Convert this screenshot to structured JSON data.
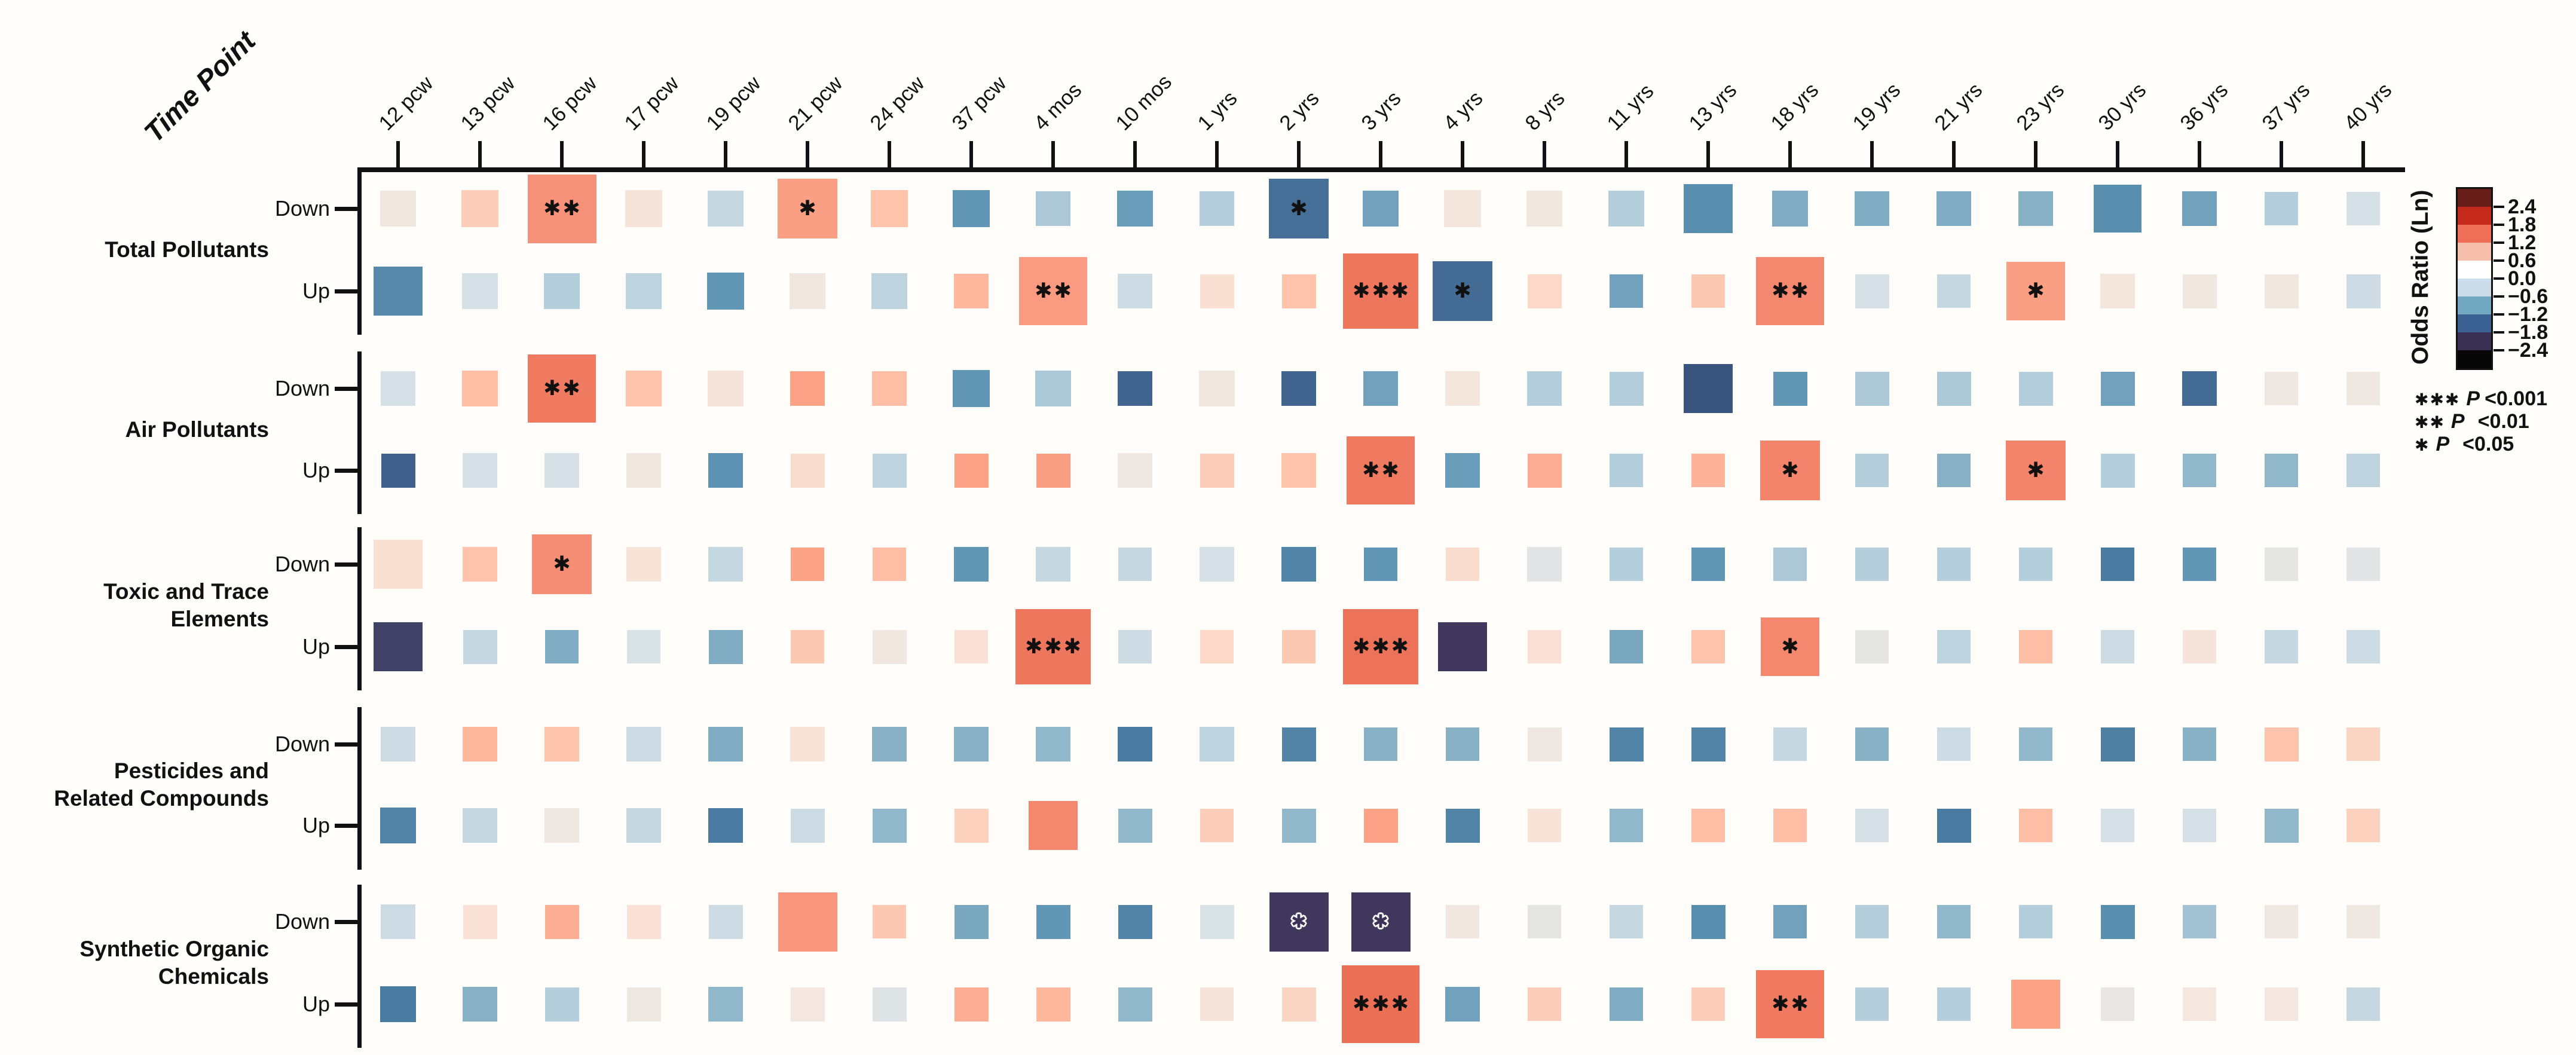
{
  "figure": {
    "background": "#fffdf9",
    "axis_color": "#121111"
  },
  "significance_legend": [
    {
      "stars": "***",
      "p": "P",
      "threshold": "<0.001"
    },
    {
      "stars": "**",
      "p": "P",
      "threshold": "<0.01"
    },
    {
      "stars": "*",
      "p": "P",
      "threshold": "<0.05"
    }
  ],
  "legend": {
    "title": "Odds Ratio (Ln)",
    "ticks": [
      "2.4",
      "1.8",
      "1.2",
      "0.6",
      "0.0",
      "−0.6",
      "−1.2",
      "−1.8",
      "−2.4"
    ],
    "bin_colors_top_to_bottom": [
      "#671e19",
      "#c52a1d",
      "#ee6e57",
      "#f6bfab",
      "#ffffff",
      "#cbdcea",
      "#73a8c2",
      "#3a6192",
      "#393054",
      "#070707"
    ]
  },
  "chart_data": {
    "type": "heatmap",
    "x_label": "Time Point",
    "value_label": "Odds Ratio (Ln)",
    "value_range": [
      -2.4,
      2.4
    ],
    "categories": [
      "12 pcw",
      "13 pcw",
      "16 pcw",
      "17 pcw",
      "19 pcw",
      "21 pcw",
      "24 pcw",
      "37 pcw",
      "4 mos",
      "10 mos",
      "1 yrs",
      "2 yrs",
      "3 yrs",
      "4 yrs",
      "8 yrs",
      "11 yrs",
      "13 yrs",
      "18 yrs",
      "19 yrs",
      "21 yrs",
      "23 yrs",
      "30 yrs",
      "36 yrs",
      "37 yrs",
      "40 yrs"
    ],
    "colormap": [
      [
        -2.6,
        "#2e2746"
      ],
      [
        -2.0,
        "#403a5e"
      ],
      [
        -1.8,
        "#3a5480"
      ],
      [
        -1.3,
        "#4a7ba0"
      ],
      [
        -1.0,
        "#6197b5"
      ],
      [
        -0.75,
        "#88b1c6"
      ],
      [
        -0.5,
        "#b5cedb"
      ],
      [
        -0.3,
        "#d5e1e7"
      ],
      [
        -0.15,
        "#e2e5e5"
      ],
      [
        0,
        "#ece7e3"
      ],
      [
        0.2,
        "#f3e7df"
      ],
      [
        0.45,
        "#fae0d3"
      ],
      [
        0.7,
        "#fccdb8"
      ],
      [
        0.9,
        "#feb89e"
      ],
      [
        1.1,
        "#fba287"
      ],
      [
        1.3,
        "#f7927a"
      ],
      [
        1.5,
        "#f17e64"
      ],
      [
        1.7,
        "#ea6f55"
      ],
      [
        2.0,
        "#d44c31"
      ],
      [
        2.4,
        "#c22d1d"
      ]
    ],
    "groups": [
      {
        "name": "Total Pollutants",
        "name_lines": [
          "Total Pollutants"
        ],
        "rows": [
          {
            "direction": "Down",
            "values": [
              0.1,
              0.7,
              1.3,
              0.3,
              -0.4,
              1.15,
              0.8,
              -1.0,
              -0.55,
              -0.95,
              -0.5,
              -1.45,
              -0.9,
              0.25,
              0.1,
              -0.5,
              -1.1,
              -0.8,
              -0.8,
              -0.8,
              -0.75,
              -1.1,
              -0.9,
              -0.5,
              -0.3
            ],
            "sizes": [
              60,
              62,
              115,
              62,
              60,
              100,
              62,
              62,
              58,
              60,
              58,
              100,
              60,
              62,
              60,
              60,
              82,
              60,
              58,
              58,
              58,
              80,
              58,
              56,
              56
            ],
            "sig": [
              "",
              "",
              "**",
              "",
              "",
              "*",
              "",
              "",
              "",
              "",
              "",
              "*",
              "",
              "",
              "",
              "",
              "",
              "",
              "",
              "",
              "",
              "",
              "",
              "",
              ""
            ]
          },
          {
            "direction": "Up",
            "values": [
              -1.15,
              -0.3,
              -0.5,
              -0.45,
              -1.0,
              0.1,
              -0.45,
              0.9,
              1.2,
              -0.35,
              0.45,
              0.8,
              1.6,
              -1.5,
              0.55,
              -0.9,
              0.75,
              1.4,
              -0.3,
              -0.4,
              1.15,
              0.25,
              0.1,
              0.1,
              -0.35
            ],
            "sizes": [
              82,
              60,
              60,
              60,
              62,
              60,
              60,
              58,
              114,
              58,
              57,
              57,
              126,
              100,
              57,
              56,
              56,
              114,
              57,
              56,
              98,
              58,
              57,
              57,
              57
            ],
            "sig": [
              "",
              "",
              "",
              "",
              "",
              "",
              "",
              "",
              "**",
              "",
              "",
              "",
              "***",
              "*",
              "",
              "",
              "",
              "**",
              "",
              "",
              "*",
              "",
              "",
              "",
              ""
            ]
          }
        ]
      },
      {
        "name": "Air Pollutants",
        "name_lines": [
          "Air Pollutants"
        ],
        "rows": [
          {
            "direction": "Down",
            "values": [
              -0.3,
              0.85,
              1.55,
              0.8,
              0.3,
              1.1,
              0.85,
              -1.0,
              -0.55,
              -1.6,
              0.1,
              -1.6,
              -0.9,
              0.25,
              -0.5,
              -0.5,
              -1.8,
              -1.0,
              -0.55,
              -0.55,
              -0.5,
              -0.9,
              -1.5,
              0.05,
              0.05
            ],
            "sizes": [
              58,
              60,
              114,
              60,
              60,
              58,
              58,
              62,
              60,
              58,
              60,
              58,
              58,
              58,
              58,
              57,
              82,
              57,
              57,
              57,
              57,
              57,
              58,
              56,
              56
            ],
            "sig": [
              "",
              "",
              "**",
              "",
              "",
              "",
              "",
              "",
              "",
              "",
              "",
              "",
              "",
              "",
              "",
              "",
              "",
              "",
              "",
              "",
              "",
              "",
              "",
              "",
              ""
            ]
          },
          {
            "direction": "Up",
            "values": [
              -1.65,
              -0.3,
              -0.3,
              0.1,
              -1.05,
              0.5,
              -0.45,
              1.1,
              1.15,
              0.05,
              0.7,
              0.8,
              1.55,
              -0.95,
              1.0,
              -0.5,
              0.95,
              1.45,
              -0.5,
              -0.75,
              1.45,
              -0.5,
              -0.7,
              -0.7,
              -0.45
            ],
            "sizes": [
              57,
              58,
              58,
              58,
              58,
              57,
              57,
              57,
              57,
              58,
              57,
              58,
              114,
              58,
              57,
              56,
              56,
              100,
              56,
              56,
              100,
              57,
              56,
              56,
              56
            ],
            "sig": [
              "",
              "",
              "",
              "",
              "",
              "",
              "",
              "",
              "",
              "",
              "",
              "",
              "**",
              "",
              "",
              "",
              "",
              "*",
              "",
              "",
              "*",
              "",
              "",
              "",
              ""
            ]
          }
        ]
      },
      {
        "name": "Toxic and Trace Elements",
        "name_lines": [
          "Toxic and Trace",
          "Elements"
        ],
        "rows": [
          {
            "direction": "Down",
            "values": [
              0.45,
              0.8,
              1.35,
              0.35,
              -0.4,
              1.1,
              0.85,
              -1.0,
              -0.4,
              -0.4,
              -0.3,
              -1.2,
              -1.0,
              0.5,
              -0.15,
              -0.5,
              -1.0,
              -0.55,
              -0.5,
              -0.5,
              -0.5,
              -1.3,
              -1.0,
              -0.1,
              -0.15
            ],
            "sizes": [
              82,
              58,
              100,
              58,
              58,
              56,
              56,
              58,
              58,
              56,
              58,
              58,
              56,
              56,
              58,
              56,
              56,
              56,
              56,
              56,
              56,
              56,
              56,
              56,
              56
            ],
            "sig": [
              "",
              "",
              "*",
              "",
              "",
              "",
              "",
              "",
              "",
              "",
              "",
              "",
              "",
              "",
              "",
              "",
              "",
              "",
              "",
              "",
              "",
              "",
              "",
              "",
              ""
            ]
          },
          {
            "direction": "Up",
            "values": [
              -1.95,
              -0.4,
              -0.8,
              -0.25,
              -0.8,
              0.75,
              0.1,
              0.4,
              1.6,
              -0.35,
              0.55,
              0.75,
              1.65,
              -2.05,
              0.4,
              -0.85,
              0.8,
              1.4,
              -0.1,
              -0.45,
              0.85,
              -0.35,
              0.3,
              -0.4,
              -0.35
            ],
            "sizes": [
              82,
              57,
              56,
              56,
              57,
              56,
              57,
              56,
              126,
              56,
              56,
              56,
              126,
              82,
              56,
              56,
              56,
              98,
              56,
              56,
              56,
              56,
              56,
              56,
              56
            ],
            "sig": [
              "",
              "",
              "",
              "",
              "",
              "",
              "",
              "",
              "***",
              "",
              "",
              "",
              "***",
              "",
              "",
              "",
              "",
              "*",
              "",
              "",
              "",
              "",
              "",
              "",
              ""
            ]
          }
        ]
      },
      {
        "name": "Pesticides and Related Compounds",
        "name_lines": [
          "Pesticides and",
          "Related Compounds"
        ],
        "rows": [
          {
            "direction": "Down",
            "values": [
              -0.35,
              0.9,
              0.8,
              -0.35,
              -0.8,
              0.35,
              -0.75,
              -0.75,
              -0.7,
              -1.3,
              -0.45,
              -1.2,
              -0.75,
              -0.75,
              0.05,
              -1.2,
              -1.2,
              -0.4,
              -0.75,
              -0.35,
              -0.7,
              -1.25,
              -0.75,
              0.8,
              0.6
            ],
            "sizes": [
              58,
              58,
              58,
              58,
              58,
              58,
              58,
              58,
              58,
              58,
              58,
              57,
              56,
              56,
              57,
              57,
              57,
              56,
              56,
              56,
              56,
              57,
              56,
              57,
              56
            ],
            "sig": [
              "",
              "",
              "",
              "",
              "",
              "",
              "",
              "",
              "",
              "",
              "",
              "",
              "",
              "",
              "",
              "",
              "",
              "",
              "",
              "",
              "",
              "",
              "",
              "",
              ""
            ]
          },
          {
            "direction": "Up",
            "values": [
              -1.2,
              -0.4,
              0.05,
              -0.4,
              -1.3,
              -0.35,
              -0.7,
              0.65,
              1.4,
              -0.7,
              0.7,
              -0.7,
              1.1,
              -1.2,
              0.35,
              -0.7,
              0.85,
              0.85,
              -0.3,
              -1.3,
              0.85,
              -0.3,
              -0.3,
              -0.7,
              0.65
            ],
            "sizes": [
              60,
              58,
              58,
              58,
              58,
              57,
              57,
              57,
              82,
              57,
              56,
              57,
              57,
              57,
              56,
              56,
              56,
              56,
              56,
              57,
              56,
              56,
              56,
              57,
              56
            ],
            "sig": [
              "",
              "",
              "",
              "",
              "",
              "",
              "",
              "",
              "",
              "",
              "",
              "",
              "",
              "",
              "",
              "",
              "",
              "",
              "",
              "",
              "",
              "",
              "",
              "",
              ""
            ]
          }
        ]
      },
      {
        "name": "Synthetic Organic Chemicals",
        "name_lines": [
          "Synthetic Organic",
          "Chemicals"
        ],
        "rows": [
          {
            "direction": "Down",
            "values": [
              -0.35,
              0.4,
              1.0,
              0.4,
              -0.35,
              1.25,
              0.75,
              -0.85,
              -1.0,
              -1.2,
              -0.25,
              -2.05,
              -2.05,
              0.15,
              -0.1,
              -0.4,
              -1.1,
              -0.9,
              -0.5,
              -0.7,
              -0.5,
              -1.1,
              -0.6,
              0.05,
              0.05
            ],
            "sizes": [
              58,
              57,
              57,
              57,
              57,
              99,
              56,
              57,
              57,
              57,
              57,
              99,
              99,
              56,
              56,
              56,
              57,
              56,
              56,
              56,
              56,
              57,
              56,
              56,
              56
            ],
            "sig": [
              "",
              "",
              "",
              "",
              "",
              "",
              "",
              "",
              "",
              "",
              "",
              "*",
              "*",
              "",
              "",
              "",
              "",
              "",
              "",
              "",
              "",
              "",
              "",
              "",
              ""
            ]
          },
          {
            "direction": "Up",
            "values": [
              -1.3,
              -0.75,
              -0.5,
              0.05,
              -0.7,
              0.2,
              -0.2,
              1.0,
              0.9,
              -0.7,
              0.3,
              0.6,
              1.7,
              -0.9,
              0.7,
              -0.8,
              0.7,
              1.55,
              -0.5,
              -0.5,
              1.1,
              -0.05,
              0.2,
              0.2,
              -0.4
            ],
            "sizes": [
              60,
              58,
              57,
              57,
              58,
              57,
              57,
              57,
              57,
              57,
              56,
              57,
              130,
              58,
              56,
              56,
              56,
              114,
              56,
              56,
              82,
              56,
              56,
              56,
              56
            ],
            "sig": [
              "",
              "",
              "",
              "",
              "",
              "",
              "",
              "",
              "",
              "",
              "",
              "",
              "***",
              "",
              "",
              "",
              "",
              "**",
              "",
              "",
              "",
              "",
              "",
              "",
              ""
            ]
          }
        ]
      }
    ]
  }
}
